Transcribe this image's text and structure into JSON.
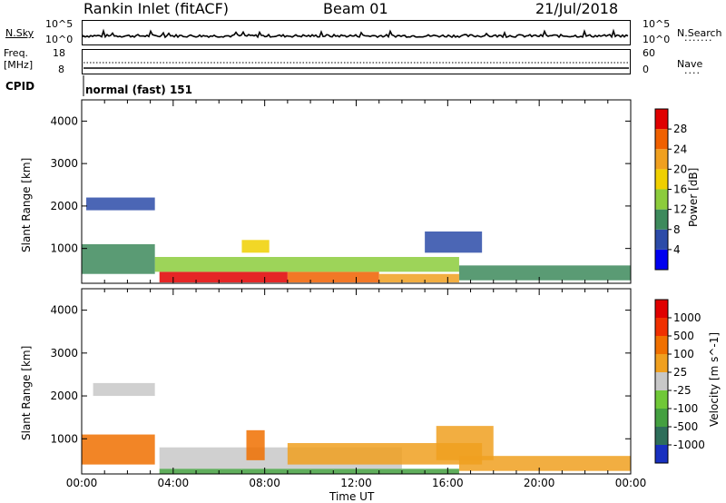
{
  "header": {
    "station": "Rankin Inlet (fitACF)",
    "beam": "Beam 01",
    "date": "21/Jul/2018"
  },
  "noise_panel": {
    "left_label": "N.Sky",
    "right_label": "N.Search",
    "left_ticks": [
      "10^5",
      "10^0"
    ],
    "right_ticks": [
      "10^5",
      "10^0"
    ]
  },
  "freq_panel": {
    "left_label_line1": "Freq.",
    "left_label_line2": "[MHz]",
    "left_ticks": [
      "18",
      "8"
    ],
    "right_label": "Nave",
    "right_ticks": [
      "60",
      "0"
    ]
  },
  "cpid": {
    "label": "CPID",
    "value": "normal (fast) 151"
  },
  "x_axis": {
    "label": "Time UT",
    "ticks": [
      "00:00",
      "04:00",
      "08:00",
      "12:00",
      "16:00",
      "20:00",
      "00:00"
    ]
  },
  "chart_data": [
    {
      "type": "heatmap",
      "title": "Power",
      "ylabel": "Slant Range [km]",
      "yticks": [
        "1000",
        "2000",
        "3000",
        "4000"
      ],
      "ylim": [
        180,
        4500
      ],
      "xlim_hours": [
        0,
        24
      ],
      "colorbar": {
        "label": "Power [dB]",
        "ticks": [
          "4",
          "8",
          "12",
          "16",
          "20",
          "24",
          "28"
        ],
        "colors": [
          "#0000f0",
          "#2c4ba8",
          "#3d8a5c",
          "#8ccc3c",
          "#f0d000",
          "#f0a020",
          "#f06000",
          "#e00000"
        ]
      },
      "blocks": [
        {
          "h0": 3.4,
          "h1": 9.0,
          "r0": 200,
          "r1": 450,
          "color": "#e00000"
        },
        {
          "h0": 9.0,
          "h1": 13.0,
          "r0": 200,
          "r1": 450,
          "color": "#f06000"
        },
        {
          "h0": 13.0,
          "h1": 16.5,
          "r0": 200,
          "r1": 400,
          "color": "#f0a020"
        },
        {
          "h0": 3.2,
          "h1": 16.5,
          "r0": 450,
          "r1": 800,
          "color": "#8ccc3c"
        },
        {
          "h0": 0.0,
          "h1": 3.2,
          "r0": 400,
          "r1": 1100,
          "color": "#3d8a5c"
        },
        {
          "h0": 16.5,
          "h1": 24.0,
          "r0": 250,
          "r1": 600,
          "color": "#3d8a5c"
        },
        {
          "h0": 0.2,
          "h1": 3.2,
          "r0": 1900,
          "r1": 2200,
          "color": "#2c4ba8"
        },
        {
          "h0": 15.0,
          "h1": 17.5,
          "r0": 900,
          "r1": 1400,
          "color": "#2c4ba8"
        },
        {
          "h0": 7.0,
          "h1": 8.2,
          "r0": 900,
          "r1": 1200,
          "color": "#f0d000"
        }
      ]
    },
    {
      "type": "heatmap",
      "title": "Velocity",
      "ylabel": "Slant Range [km]",
      "yticks": [
        "1000",
        "2000",
        "3000",
        "4000"
      ],
      "ylim": [
        180,
        4500
      ],
      "xlim_hours": [
        0,
        24
      ],
      "colorbar": {
        "label": "Velocity [m s^-1]",
        "ticks": [
          "1000",
          "500",
          "100",
          "25",
          "-25",
          "-100",
          "-500",
          "-1000"
        ],
        "colors": [
          "#1830c0",
          "#2e6e5a",
          "#44a040",
          "#70c838",
          "#c8c8c8",
          "#f0a020",
          "#f07000",
          "#f03000",
          "#e00000"
        ]
      },
      "blocks": [
        {
          "h0": 3.4,
          "h1": 14.0,
          "r0": 300,
          "r1": 800,
          "color": "#c8c8c8"
        },
        {
          "h0": 3.4,
          "h1": 16.5,
          "r0": 180,
          "r1": 300,
          "color": "#44a040"
        },
        {
          "h0": 0.0,
          "h1": 3.2,
          "r0": 400,
          "r1": 1100,
          "color": "#f07000"
        },
        {
          "h0": 9.0,
          "h1": 17.5,
          "r0": 400,
          "r1": 900,
          "color": "#f0a020"
        },
        {
          "h0": 16.5,
          "h1": 24.0,
          "r0": 250,
          "r1": 600,
          "color": "#f0a020"
        },
        {
          "h0": 0.5,
          "h1": 3.2,
          "r0": 2000,
          "r1": 2300,
          "color": "#c8c8c8"
        },
        {
          "h0": 15.5,
          "h1": 18.0,
          "r0": 500,
          "r1": 1300,
          "color": "#f0a020"
        },
        {
          "h0": 7.2,
          "h1": 8.0,
          "r0": 500,
          "r1": 1200,
          "color": "#f07000"
        }
      ]
    }
  ]
}
